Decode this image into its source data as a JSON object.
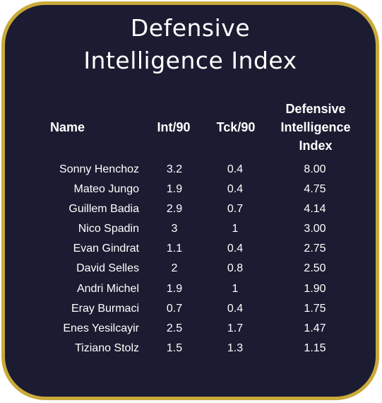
{
  "title": {
    "line1": "Defensive",
    "line2": "Intelligence Index"
  },
  "colors": {
    "background": "#1b1c31",
    "border": "#c9a93a",
    "text": "#ffffff"
  },
  "headers": {
    "name": "Name",
    "int": "Int/90",
    "tck": "Tck/90",
    "dii": [
      "Defensive",
      "Intelligence",
      "Index"
    ]
  },
  "rows": [
    {
      "name": "Sonny Henchoz",
      "int": "3.2",
      "tck": "0.4",
      "dii": "8.00"
    },
    {
      "name": "Mateo Jungo",
      "int": "1.9",
      "tck": "0.4",
      "dii": "4.75"
    },
    {
      "name": "Guillem Badia",
      "int": "2.9",
      "tck": "0.7",
      "dii": "4.14"
    },
    {
      "name": "Nico Spadin",
      "int": "3",
      "tck": "1",
      "dii": "3.00"
    },
    {
      "name": "Evan Gindrat",
      "int": "1.1",
      "tck": "0.4",
      "dii": "2.75"
    },
    {
      "name": "David Selles",
      "int": "2",
      "tck": "0.8",
      "dii": "2.50"
    },
    {
      "name": "Andri Michel",
      "int": "1.9",
      "tck": "1",
      "dii": "1.90"
    },
    {
      "name": "Eray Burmaci",
      "int": "0.7",
      "tck": "0.4",
      "dii": "1.75"
    },
    {
      "name": "Enes Yesilcayir",
      "int": "2.5",
      "tck": "1.7",
      "dii": "1.47"
    },
    {
      "name": "Tiziano Stolz",
      "int": "1.5",
      "tck": "1.3",
      "dii": "1.15"
    }
  ]
}
